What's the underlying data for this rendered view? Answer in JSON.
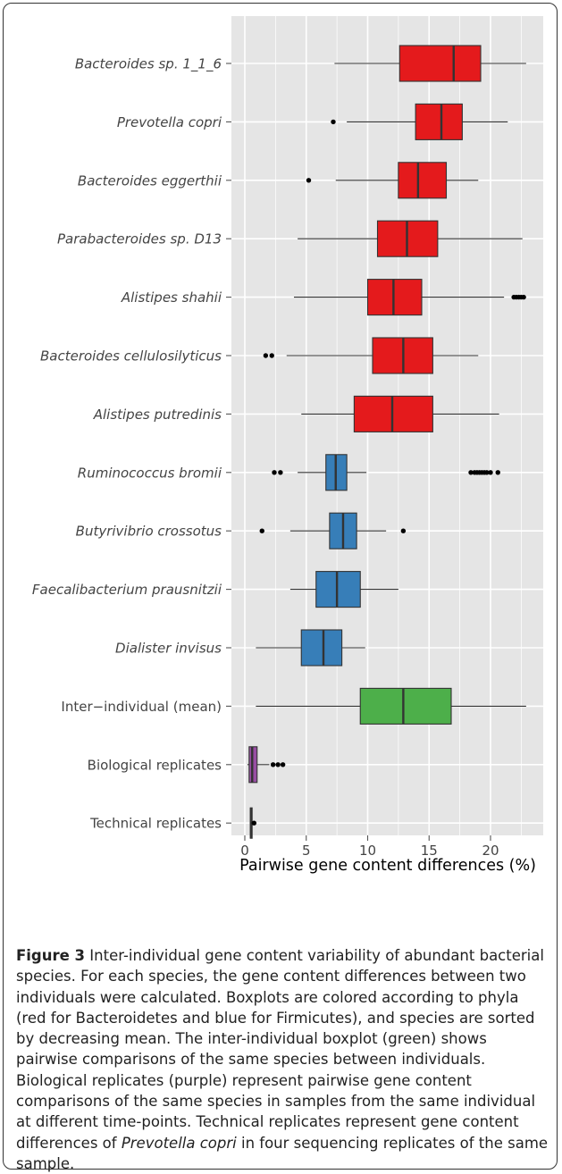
{
  "chart_data": {
    "type": "box",
    "xlabel": "Pairwise gene content differences (%)",
    "xlim": [
      -1,
      23.5
    ],
    "xticks": [
      0,
      5,
      10,
      15,
      20
    ],
    "grid": true,
    "orientation": "horizontal",
    "categories": [
      {
        "label": "Bacteroides sp. 1_1_6",
        "italic": true,
        "phylum": "Bacteroidetes",
        "color": "#e41a1c",
        "min": 7.3,
        "q1": 12.6,
        "median": 17.0,
        "q3": 19.2,
        "max": 22.9,
        "outliers": []
      },
      {
        "label": "Prevotella copri",
        "italic": true,
        "phylum": "Bacteroidetes",
        "color": "#e41a1c",
        "min": 8.3,
        "q1": 13.9,
        "median": 16.0,
        "q3": 17.7,
        "max": 21.4,
        "outliers": [
          7.2
        ]
      },
      {
        "label": "Bacteroides eggerthii",
        "italic": true,
        "phylum": "Bacteroidetes",
        "color": "#e41a1c",
        "min": 7.4,
        "q1": 12.5,
        "median": 14.1,
        "q3": 16.4,
        "max": 19.0,
        "outliers": [
          5.2
        ]
      },
      {
        "label": "Parabacteroides sp. D13",
        "italic": true,
        "phylum": "Bacteroidetes",
        "color": "#e41a1c",
        "min": 4.3,
        "q1": 10.8,
        "median": 13.2,
        "q3": 15.7,
        "max": 22.6,
        "outliers": []
      },
      {
        "label": "Alistipes shahii",
        "italic": true,
        "phylum": "Bacteroidetes",
        "color": "#e41a1c",
        "min": 4.0,
        "q1": 10.0,
        "median": 12.1,
        "q3": 14.4,
        "max": 21.1,
        "outliers": [
          21.9,
          22.1,
          22.3,
          22.5,
          22.7
        ]
      },
      {
        "label": "Bacteroides cellulosilyticus",
        "italic": true,
        "phylum": "Bacteroidetes",
        "color": "#e41a1c",
        "min": 3.4,
        "q1": 10.4,
        "median": 12.9,
        "q3": 15.3,
        "max": 19.0,
        "outliers": [
          1.7,
          2.2
        ]
      },
      {
        "label": "Alistipes putredinis",
        "italic": true,
        "phylum": "Bacteroidetes",
        "color": "#e41a1c",
        "min": 4.6,
        "q1": 8.9,
        "median": 12.0,
        "q3": 15.3,
        "max": 20.7,
        "outliers": []
      },
      {
        "label": "Ruminococcus bromii",
        "italic": true,
        "phylum": "Firmicutes",
        "color": "#377eb8",
        "min": 4.3,
        "q1": 6.6,
        "median": 7.4,
        "q3": 8.3,
        "max": 9.9,
        "outliers": [
          2.4,
          2.9,
          18.4,
          18.7,
          18.9,
          19.1,
          19.3,
          19.5,
          19.7,
          20.0,
          20.6
        ]
      },
      {
        "label": "Butyrivibrio crossotus",
        "italic": true,
        "phylum": "Firmicutes",
        "color": "#377eb8",
        "min": 3.7,
        "q1": 6.9,
        "median": 8.0,
        "q3": 9.1,
        "max": 11.5,
        "outliers": [
          1.4,
          12.9
        ]
      },
      {
        "label": "Faecalibacterium prausnitzii",
        "italic": true,
        "phylum": "Firmicutes",
        "color": "#377eb8",
        "min": 3.7,
        "q1": 5.8,
        "median": 7.5,
        "q3": 9.4,
        "max": 12.5,
        "outliers": []
      },
      {
        "label": "Dialister invisus",
        "italic": true,
        "phylum": "Firmicutes",
        "color": "#377eb8",
        "min": 0.9,
        "q1": 4.6,
        "median": 6.4,
        "q3": 7.9,
        "max": 9.8,
        "outliers": []
      },
      {
        "label": "Inter−individual (mean)",
        "italic": false,
        "color": "#4daf4a",
        "min": 0.9,
        "q1": 9.4,
        "median": 12.9,
        "q3": 16.8,
        "max": 22.9,
        "outliers": []
      },
      {
        "label": "Biological replicates",
        "italic": false,
        "color": "#984ea3",
        "min": 0.2,
        "q1": 0.35,
        "median": 0.6,
        "q3": 1.0,
        "max": 2.0,
        "outliers": [
          2.3,
          2.7,
          3.1
        ]
      },
      {
        "label": "Technical replicates",
        "italic": false,
        "color": "#984ea3",
        "min": 0.4,
        "q1": 0.45,
        "median": 0.5,
        "q3": 0.55,
        "max": 0.6,
        "outliers": [
          0.75
        ]
      }
    ]
  },
  "caption": {
    "label": "Figure 3",
    "text_before_italic": " Inter-individual gene content variability of abundant bacterial species. For each species, the gene content differences between two individuals were calculated. Boxplots are colored according to phyla (red for Bacteroidetes and blue for Firmicutes), and species are sorted by decreasing mean. The inter-individual boxplot (green) shows pairwise comparisons of the same species between individuals. Biological replicates (purple) represent pairwise gene content comparisons of the same species in samples from the same individual at different time-points. Technical replicates represent gene content differences of ",
    "italic_text": "Prevotella copri",
    "text_after_italic": " in four sequencing replicates of the same sample."
  }
}
